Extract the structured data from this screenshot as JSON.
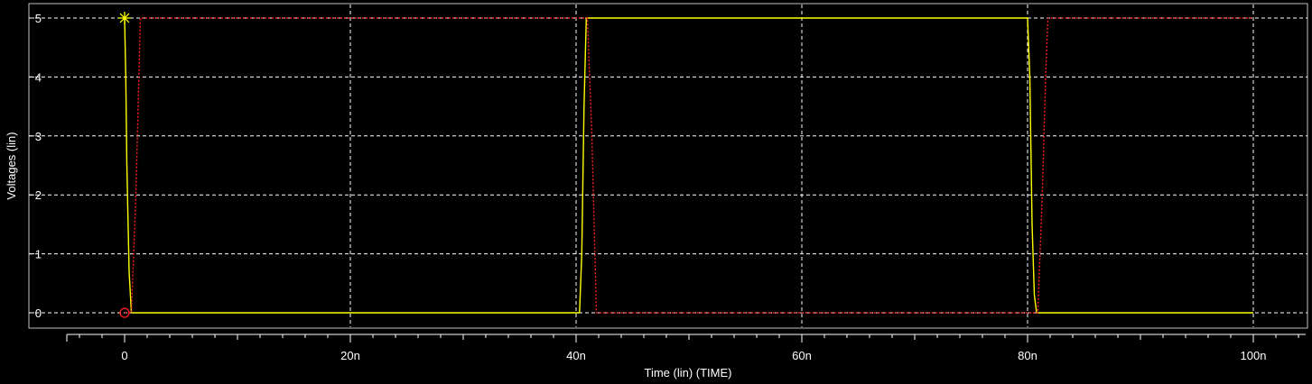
{
  "chart_data": {
    "type": "line",
    "title": "",
    "xlabel": "Time (lin) (TIME)",
    "ylabel": "Voltages (lin)",
    "xlim": [
      0,
      100
    ],
    "ylim": [
      0,
      5
    ],
    "x_unit": "ns",
    "x_ticks": [
      0,
      20,
      40,
      60,
      80,
      100
    ],
    "x_tick_labels": [
      "0",
      "20n",
      "40n",
      "60n",
      "80n",
      "100n"
    ],
    "y_ticks": [
      0,
      1,
      2,
      3,
      4,
      5
    ],
    "y_tick_labels": [
      "0",
      "1",
      "2",
      "3",
      "4",
      "5"
    ],
    "grid": true,
    "grid_style": "dashed",
    "background": "#000000",
    "series": [
      {
        "color": "#ffff00",
        "line_style": "solid",
        "marker": "star",
        "points": [
          [
            0,
            5
          ],
          [
            0.1,
            4
          ],
          [
            0.2,
            2.5
          ],
          [
            0.4,
            0.7
          ],
          [
            0.6,
            0
          ],
          [
            40.3,
            0
          ],
          [
            40.5,
            1
          ],
          [
            40.7,
            3.5
          ],
          [
            40.9,
            5
          ],
          [
            80.0,
            5
          ],
          [
            80.2,
            4
          ],
          [
            80.4,
            1.5
          ],
          [
            80.6,
            0.3
          ],
          [
            80.8,
            0
          ],
          [
            100,
            0
          ]
        ]
      },
      {
        "color": "#ff2020",
        "line_style": "dotted",
        "marker": "circle",
        "points": [
          [
            0,
            0
          ],
          [
            0.6,
            0
          ],
          [
            1.0,
            2
          ],
          [
            1.4,
            5
          ],
          [
            41.0,
            5
          ],
          [
            41.4,
            3
          ],
          [
            41.8,
            0
          ],
          [
            80.9,
            0
          ],
          [
            81.3,
            2
          ],
          [
            81.6,
            4
          ],
          [
            81.8,
            5
          ],
          [
            100,
            5
          ]
        ]
      }
    ]
  }
}
